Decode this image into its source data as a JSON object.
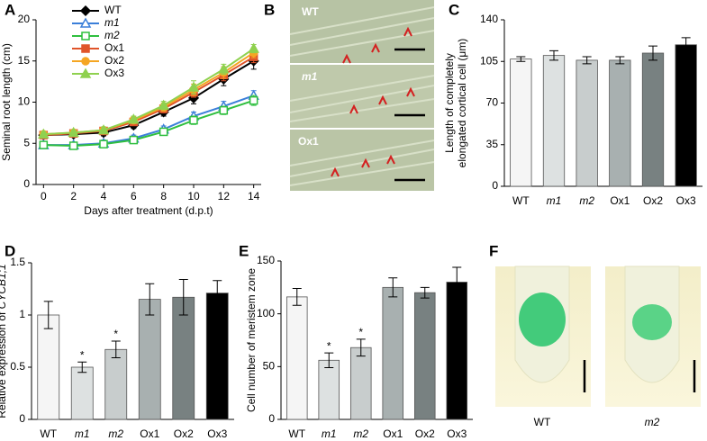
{
  "chart_data": [
    {
      "type": "line",
      "panel": "A",
      "xlabel": "Days after treatment (d.p.t)",
      "ylabel": "Seminal root length (cm)",
      "x": [
        0,
        2,
        4,
        6,
        8,
        10,
        12,
        14
      ],
      "xlim": [
        -0.5,
        14.5
      ],
      "xticks": [
        0,
        2,
        4,
        6,
        8,
        10,
        12,
        14
      ],
      "ylim": [
        0,
        20
      ],
      "yticks": [
        0,
        5,
        10,
        15,
        20
      ],
      "legend": "upper-left",
      "series": [
        {
          "name": "WT",
          "color": "#000000",
          "marker": "diamond",
          "open": false,
          "italic": false,
          "values": [
            6.0,
            6.1,
            6.3,
            7.2,
            8.8,
            10.5,
            12.8,
            15.0
          ],
          "errors": [
            0.3,
            0.3,
            0.4,
            0.4,
            0.5,
            0.7,
            0.8,
            1.0
          ]
        },
        {
          "name": "m1",
          "color": "#3b7fd9",
          "marker": "triangle",
          "open": true,
          "italic": true,
          "values": [
            4.8,
            4.8,
            5.0,
            5.6,
            6.7,
            8.3,
            9.5,
            10.8
          ],
          "errors": [
            0.3,
            0.3,
            0.4,
            0.4,
            0.4,
            0.5,
            0.6,
            0.6
          ]
        },
        {
          "name": "m2",
          "color": "#2fbf3f",
          "marker": "square",
          "open": true,
          "italic": true,
          "values": [
            4.8,
            4.7,
            4.9,
            5.4,
            6.4,
            7.8,
            9.0,
            10.2
          ],
          "errors": [
            0.3,
            0.3,
            0.4,
            0.4,
            0.4,
            0.5,
            0.5,
            0.6
          ]
        },
        {
          "name": "Ox1",
          "color": "#e0542a",
          "marker": "square",
          "open": false,
          "italic": false,
          "values": [
            6.0,
            6.2,
            6.5,
            7.6,
            9.2,
            11.2,
            13.3,
            15.5
          ],
          "errors": [
            0.3,
            0.3,
            0.4,
            0.4,
            0.5,
            0.6,
            0.7,
            0.7
          ]
        },
        {
          "name": "Ox2",
          "color": "#f5a623",
          "marker": "circle",
          "open": false,
          "italic": false,
          "values": [
            6.1,
            6.3,
            6.6,
            7.8,
            9.4,
            11.5,
            13.6,
            16.0
          ],
          "errors": [
            0.3,
            0.3,
            0.4,
            0.4,
            0.5,
            0.7,
            0.7,
            0.6
          ]
        },
        {
          "name": "Ox3",
          "color": "#8fd14f",
          "marker": "triangle",
          "open": false,
          "italic": false,
          "values": [
            6.1,
            6.3,
            6.6,
            7.9,
            9.6,
            11.8,
            14.0,
            16.5
          ],
          "errors": [
            0.3,
            0.3,
            0.4,
            0.4,
            0.5,
            0.8,
            0.6,
            0.5
          ]
        }
      ]
    },
    {
      "type": "bar",
      "panel": "C",
      "ylabel": [
        "Length of completely",
        "elongated cortical cell (μm)"
      ],
      "categories": [
        "WT",
        "m1",
        "m2",
        "Ox1",
        "Ox2",
        "Ox3"
      ],
      "italic": [
        false,
        true,
        true,
        false,
        false,
        false
      ],
      "colors": [
        "#f5f5f5",
        "#dde1e1",
        "#c8cdcd",
        "#a8b0b0",
        "#788181",
        "#000000"
      ],
      "values": [
        107,
        110,
        106,
        106,
        112,
        119
      ],
      "errors": [
        2,
        4,
        3,
        3,
        6,
        6
      ],
      "ylim": [
        0,
        140
      ],
      "yticks": [
        0,
        35,
        70,
        105,
        140
      ]
    },
    {
      "type": "bar",
      "panel": "D",
      "ylabel": [
        "Relative expression of ",
        "CYCB1;1"
      ],
      "categories": [
        "WT",
        "m1",
        "m2",
        "Ox1",
        "Ox2",
        "Ox3"
      ],
      "italic": [
        false,
        true,
        true,
        false,
        false,
        false
      ],
      "colors": [
        "#f5f5f5",
        "#dde1e1",
        "#c8cdcd",
        "#a8b0b0",
        "#788181",
        "#000000"
      ],
      "values": [
        1.0,
        0.5,
        0.67,
        1.15,
        1.17,
        1.21
      ],
      "errors": [
        0.13,
        0.05,
        0.08,
        0.15,
        0.17,
        0.12
      ],
      "significance": [
        null,
        "*",
        "*",
        null,
        null,
        null
      ],
      "ylim": [
        0,
        1.5
      ],
      "yticks": [
        0,
        0.5,
        1,
        1.5
      ]
    },
    {
      "type": "bar",
      "panel": "E",
      "ylabel": "Cell number of meristem zone",
      "categories": [
        "WT",
        "m1",
        "m2",
        "Ox1",
        "Ox2",
        "Ox3"
      ],
      "italic": [
        false,
        true,
        true,
        false,
        false,
        false
      ],
      "colors": [
        "#f5f5f5",
        "#dde1e1",
        "#c8cdcd",
        "#a8b0b0",
        "#788181",
        "#000000"
      ],
      "values": [
        116,
        56,
        68,
        125,
        120,
        130
      ],
      "errors": [
        8,
        7,
        8,
        9,
        5,
        14
      ],
      "significance": [
        null,
        "*",
        "*",
        null,
        null,
        null
      ],
      "ylim": [
        0,
        150
      ],
      "yticks": [
        0,
        50,
        100,
        150
      ]
    }
  ],
  "image_panels": [
    {
      "panel": "B",
      "labels": [
        "WT",
        "m1",
        "Ox1"
      ]
    },
    {
      "panel": "F",
      "labels": [
        "WT",
        "m2"
      ]
    }
  ]
}
